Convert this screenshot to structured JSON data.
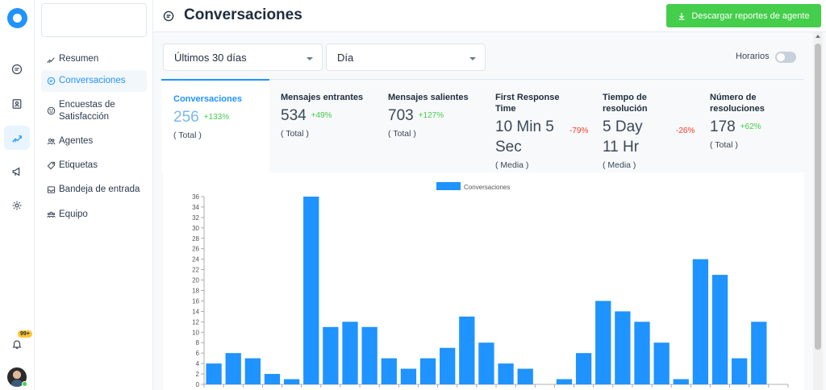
{
  "header": {
    "title": "Conversaciones",
    "download_label": "Descargar reportes de agente"
  },
  "rail": {
    "icons": [
      "conversations-icon",
      "contacts-icon",
      "reports-icon",
      "campaigns-icon",
      "settings-icon"
    ],
    "notification_badge": "99+"
  },
  "sidebar": {
    "items": [
      {
        "label": "Resumen",
        "icon": "overview-icon"
      },
      {
        "label": "Conversaciones",
        "icon": "chat-icon",
        "active": true
      },
      {
        "label": "Encuestas de Satisfacción",
        "icon": "smile-icon"
      },
      {
        "label": "Agentes",
        "icon": "people-icon"
      },
      {
        "label": "Etiquetas",
        "icon": "tag-icon"
      },
      {
        "label": "Bandeja de entrada",
        "icon": "inbox-icon"
      },
      {
        "label": "Equipo",
        "icon": "team-icon"
      }
    ]
  },
  "filters": {
    "date_range": "Últimos 30 días",
    "group_by": "Día",
    "business_hours_label": "Horarios",
    "business_hours_on": false
  },
  "metrics": [
    {
      "title": "Conversaciones",
      "value": "256",
      "change": "+133%",
      "trend": "up",
      "sub": "( Total )",
      "active": true
    },
    {
      "title": "Mensajes entrantes",
      "value": "534",
      "change": "+49%",
      "trend": "up",
      "sub": "( Total )"
    },
    {
      "title": "Mensajes salientes",
      "value": "703",
      "change": "+127%",
      "trend": "up",
      "sub": "( Total )"
    },
    {
      "title": "First Response Time",
      "value": "10 Min 5 Sec",
      "change": "-79%",
      "trend": "down",
      "sub": "( Media )"
    },
    {
      "title": "Tiempo de resolución",
      "value": "5 Day 11 Hr",
      "change": "-26%",
      "trend": "down",
      "sub": "( Media )"
    },
    {
      "title": "Número de resoluciones",
      "value": "178",
      "change": "+62%",
      "trend": "up",
      "sub": "( Total )"
    }
  ],
  "colors": {
    "accent": "#1f93ff",
    "bar": "#1f93ff",
    "success": "#44ce4b",
    "danger": "#ff382d"
  },
  "chart_data": {
    "type": "bar",
    "series": [
      {
        "name": "Conversaciones",
        "values": [
          4,
          6,
          5,
          2,
          1,
          36,
          11,
          12,
          11,
          5,
          3,
          5,
          7,
          13,
          8,
          4,
          3,
          0,
          1,
          6,
          16,
          14,
          12,
          8,
          1,
          24,
          21,
          5,
          12,
          0
        ]
      }
    ],
    "ylim": [
      0,
      36
    ],
    "yticks": [
      0,
      2,
      4,
      6,
      8,
      10,
      12,
      14,
      16,
      18,
      20,
      22,
      24,
      26,
      28,
      30,
      32,
      34,
      36
    ],
    "legend": "top-center",
    "grid": false
  }
}
